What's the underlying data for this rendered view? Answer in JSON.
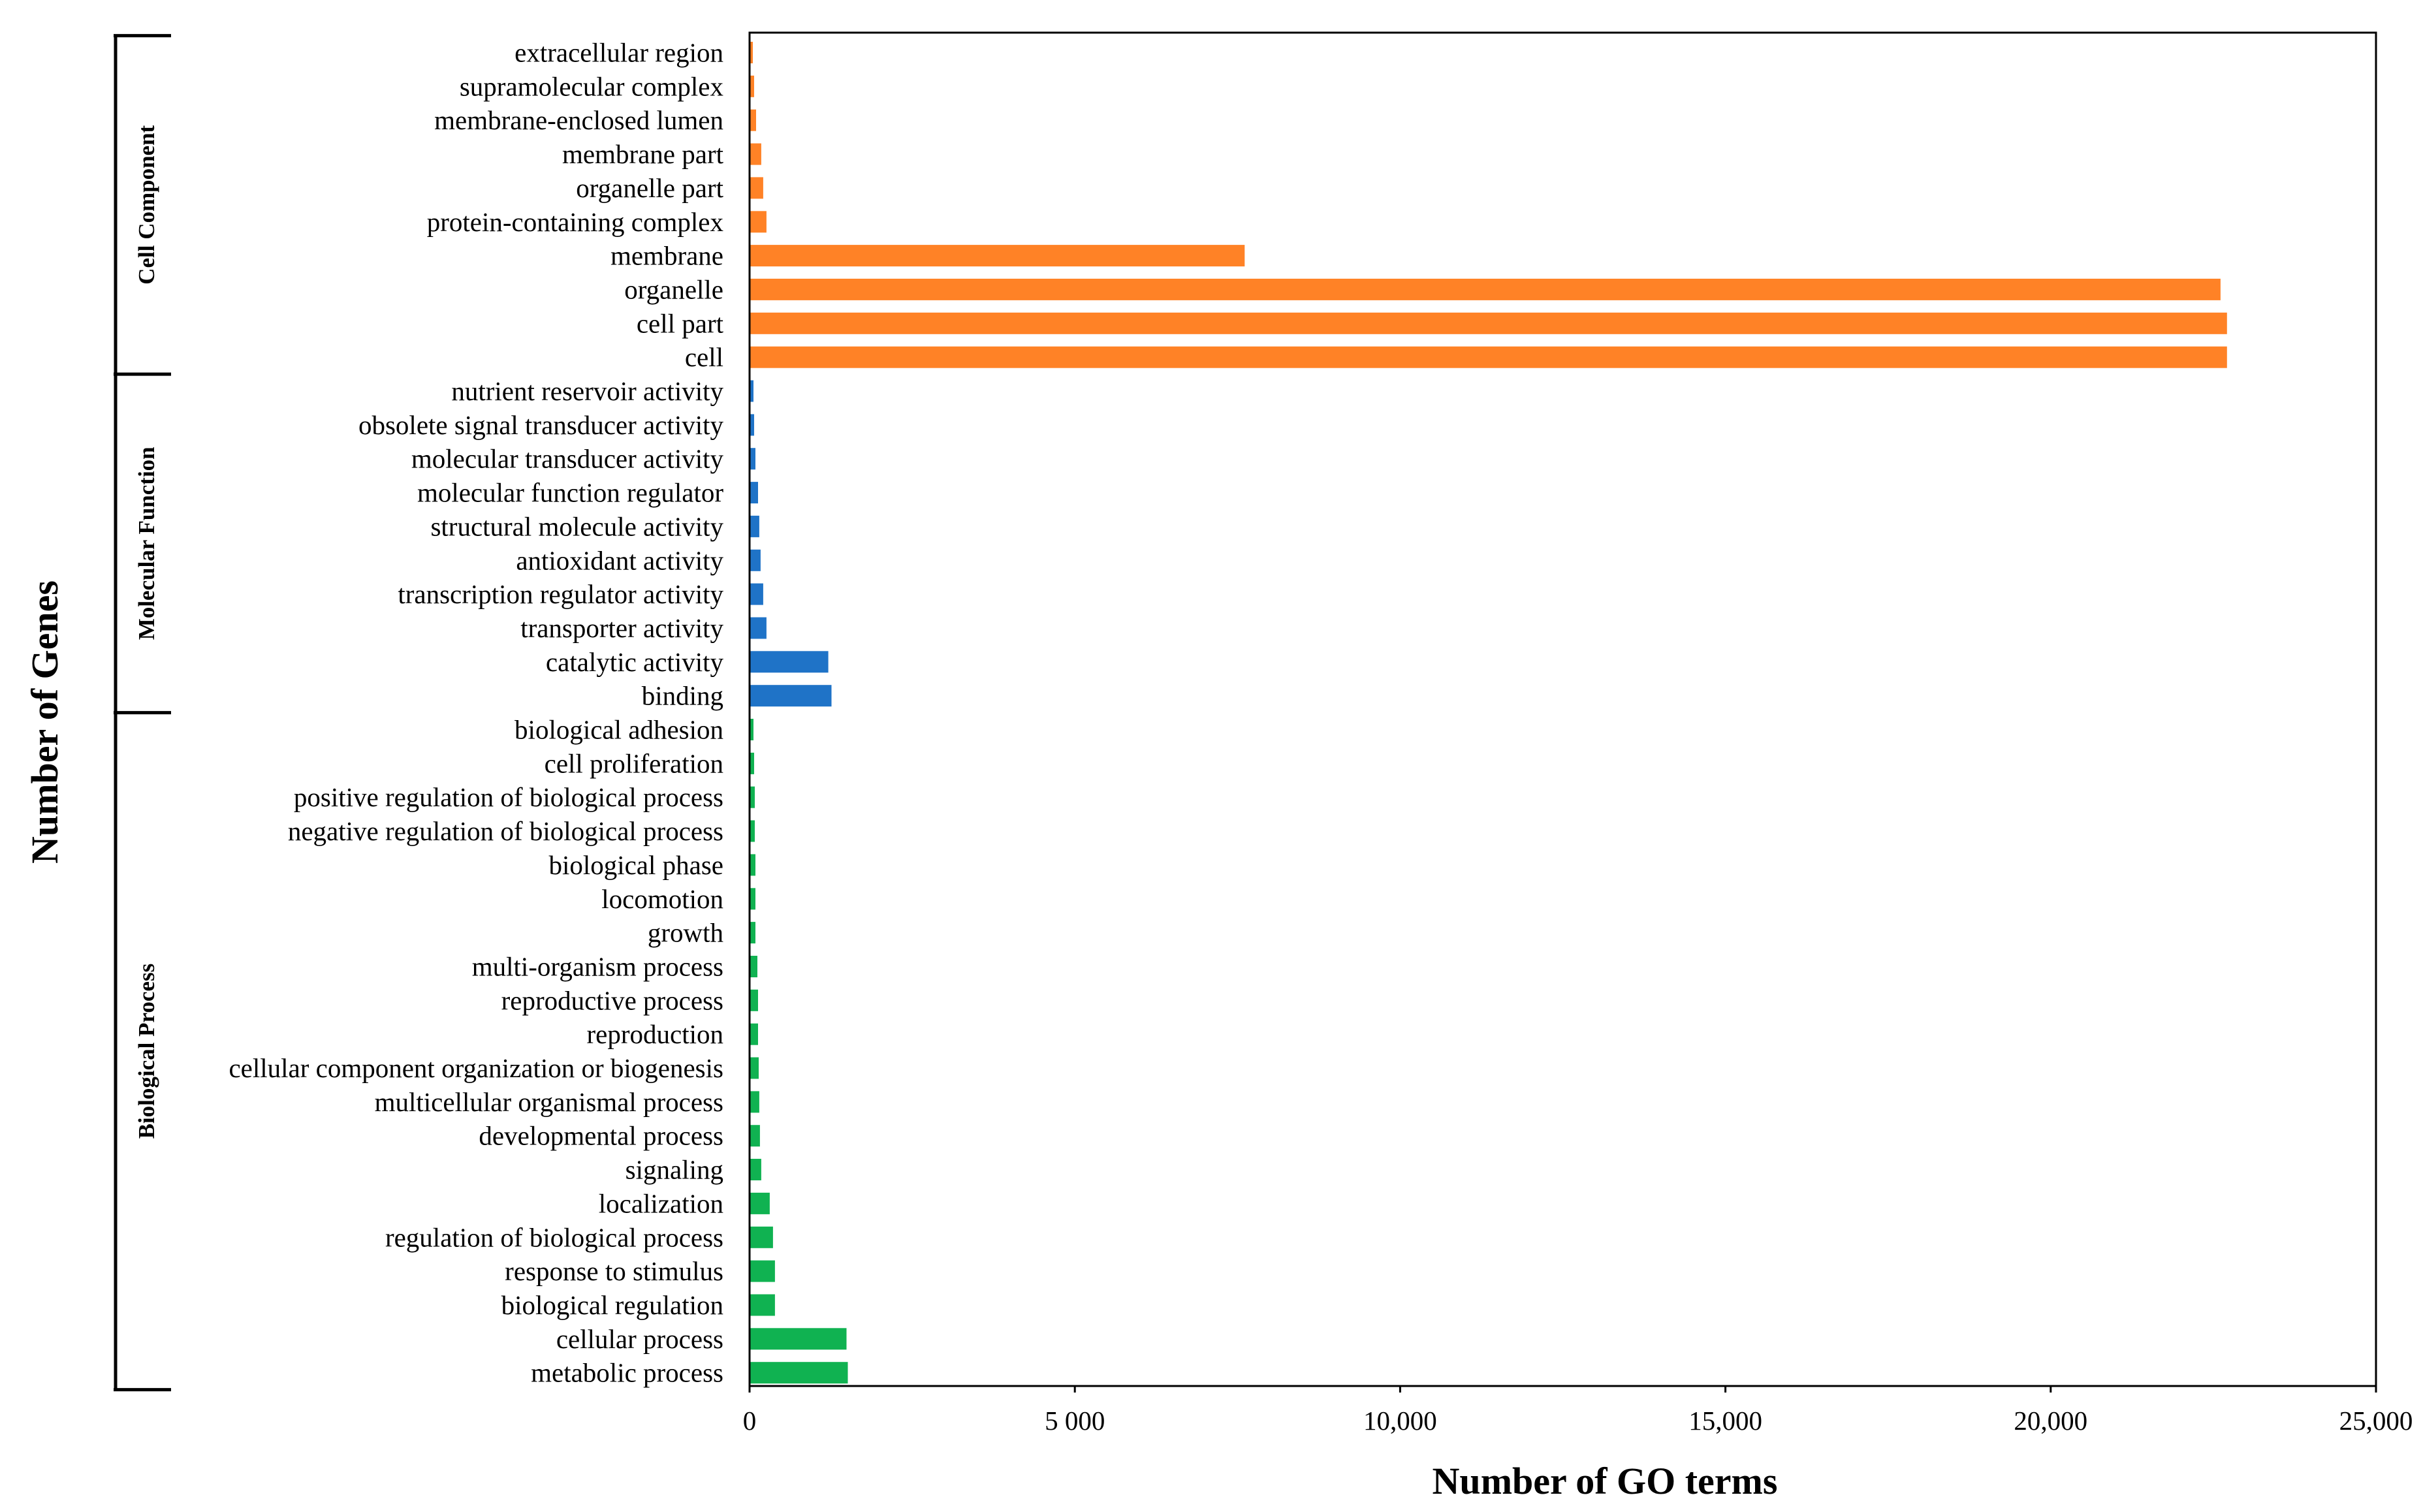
{
  "chart_data": {
    "type": "bar",
    "orientation": "horizontal",
    "xlabel": "Number of GO terms",
    "ylabel": "Number of Genes",
    "xlim": [
      0,
      25000
    ],
    "x_ticks": [
      0,
      5000,
      10000,
      15000,
      20000,
      25000
    ],
    "x_tick_labels": [
      "0",
      "5 000",
      "10,000",
      "15,000",
      "20,000",
      "25,000"
    ],
    "grid": false,
    "groups": [
      {
        "name": "Cell Component",
        "color": "#FF8226",
        "categories": [
          "extracellular region",
          "supramolecular complex",
          "membrane-enclosed lumen",
          "membrane part",
          "organelle part",
          "protein-containing complex",
          "membrane",
          "organelle",
          "cell part",
          "cell"
        ],
        "values": [
          40,
          60,
          90,
          170,
          200,
          250,
          7600,
          22600,
          22700,
          22700
        ]
      },
      {
        "name": "Molecular Function",
        "color": "#1F73C7",
        "categories": [
          "nutrient reservoir activity",
          "obsolete signal transducer activity",
          "molecular transducer activity",
          "molecular function regulator",
          "structural molecule activity",
          "antioxidant activity",
          "transcription regulator activity",
          "transporter activity",
          "catalytic activity",
          "binding"
        ],
        "values": [
          50,
          60,
          80,
          120,
          140,
          160,
          200,
          250,
          1200,
          1250
        ]
      },
      {
        "name": "Biological Process",
        "color": "#10B251",
        "categories": [
          "biological adhesion",
          "cell proliferation",
          "positive regulation of biological process",
          "negative regulation of biological process",
          "biological phase",
          "locomotion",
          "growth",
          "multi-organism process",
          "reproductive process",
          "reproduction",
          "cellular component organization or biogenesis",
          "multicellular organismal process",
          "developmental process",
          "signaling",
          "localization",
          "regulation of biological process",
          "response to stimulus",
          "biological regulation",
          "cellular process",
          "metabolic process"
        ],
        "values": [
          50,
          60,
          70,
          70,
          80,
          80,
          80,
          110,
          120,
          120,
          130,
          140,
          150,
          170,
          300,
          350,
          380,
          380,
          1480,
          1500
        ]
      }
    ]
  }
}
